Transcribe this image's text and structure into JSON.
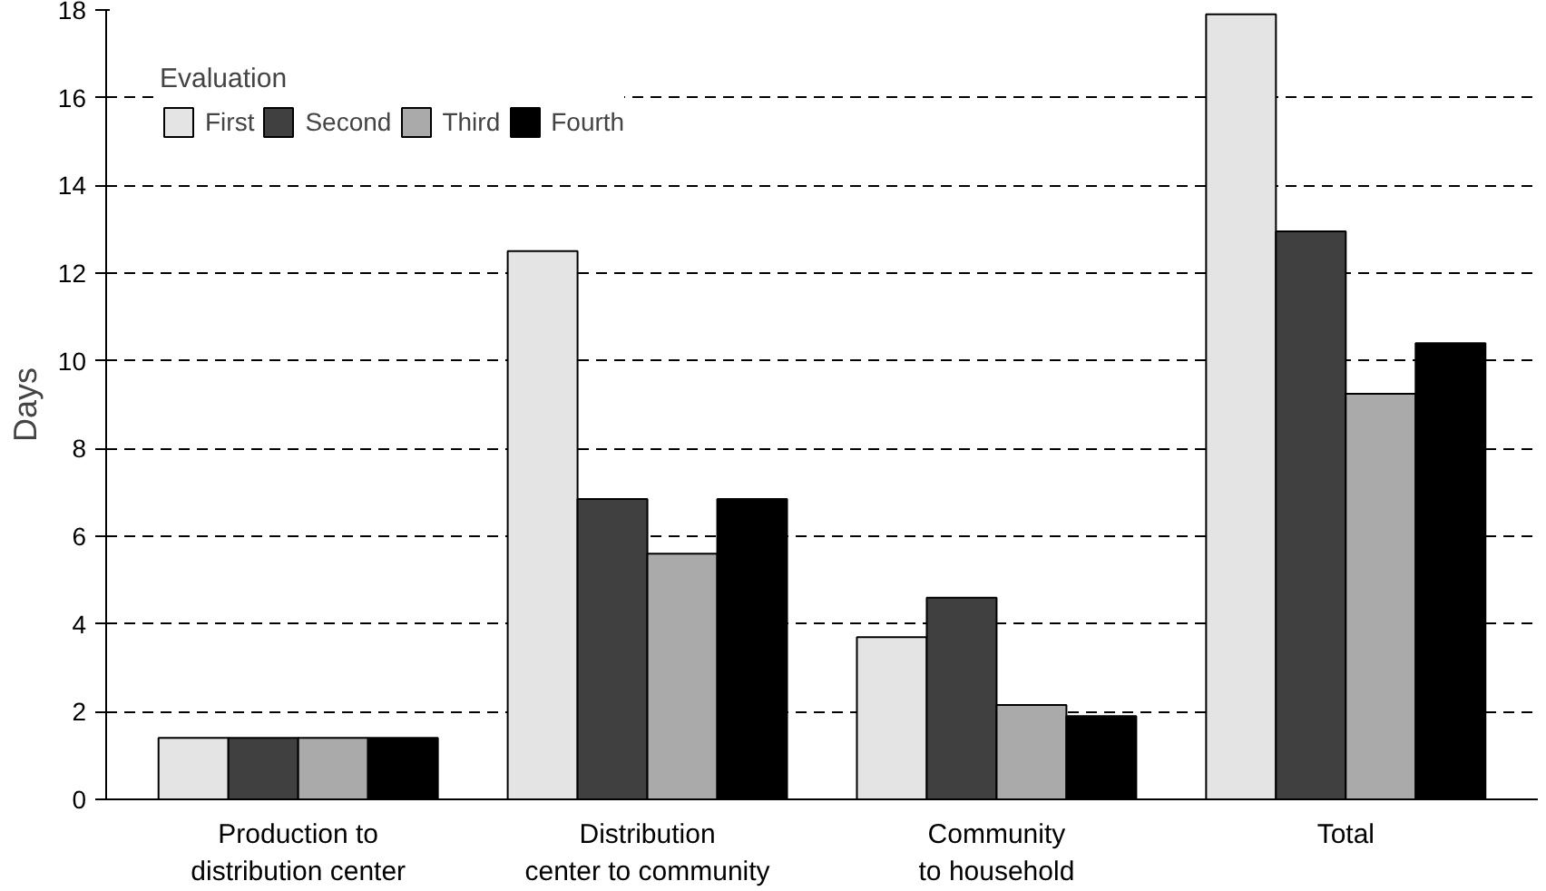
{
  "chart_data": {
    "type": "bar",
    "ylabel": "Days",
    "legend_title": "Evaluation",
    "categories": [
      "Production to distribution center",
      "Distribution center to community",
      "Community to household",
      "Total"
    ],
    "series": [
      {
        "name": "First",
        "color": "#e4e4e4",
        "values": [
          1.4,
          12.5,
          3.7,
          17.9
        ]
      },
      {
        "name": "Second",
        "color": "#404040",
        "values": [
          1.4,
          6.85,
          4.6,
          12.95
        ]
      },
      {
        "name": "Third",
        "color": "#aaaaaa",
        "values": [
          1.4,
          5.6,
          2.15,
          9.25
        ]
      },
      {
        "name": "Fourth",
        "color": "#000000",
        "values": [
          1.4,
          6.85,
          1.9,
          10.4
        ]
      }
    ],
    "ylim": [
      0,
      18
    ],
    "yticks": [
      0,
      2,
      4,
      6,
      8,
      10,
      12,
      14,
      16,
      18
    ],
    "grid": "y",
    "legend": "top left"
  }
}
